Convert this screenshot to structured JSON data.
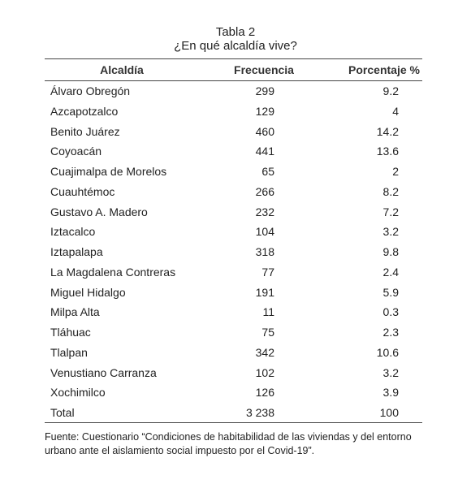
{
  "title": "Tabla 2",
  "subtitle": "¿En qué alcaldía vive?",
  "table": {
    "columns": [
      "Alcaldía",
      "Frecuencia",
      "Porcentaje %"
    ],
    "rows": [
      [
        "Álvaro Obregón",
        299,
        9.2
      ],
      [
        "Azcapotzalco",
        129,
        4
      ],
      [
        "Benito Juárez",
        460,
        14.2
      ],
      [
        "Coyoacán",
        441,
        13.6
      ],
      [
        "Cuajimalpa de Morelos",
        65,
        2
      ],
      [
        "Cuauhtémoc",
        266,
        8.2
      ],
      [
        "Gustavo A. Madero",
        232,
        7.2
      ],
      [
        "Iztacalco",
        104,
        3.2
      ],
      [
        "Iztapalapa",
        318,
        9.8
      ],
      [
        "La Magdalena Contreras",
        77,
        2.4
      ],
      [
        "Miguel Hidalgo",
        191,
        5.9
      ],
      [
        "Milpa Alta",
        11,
        0.3
      ],
      [
        "Tláhuac",
        75,
        2.3
      ],
      [
        "Tlalpan",
        342,
        10.6
      ],
      [
        "Venustiano Carranza",
        102,
        3.2
      ],
      [
        "Xochimilco",
        126,
        3.9
      ],
      [
        "Total",
        "3 238",
        100
      ]
    ]
  },
  "footnote": "Fuente: Cuestionario “Condiciones de habitabilidad de las viviendas y del entorno urbano ante el aislamiento social impuesto por el Covid-19”."
}
